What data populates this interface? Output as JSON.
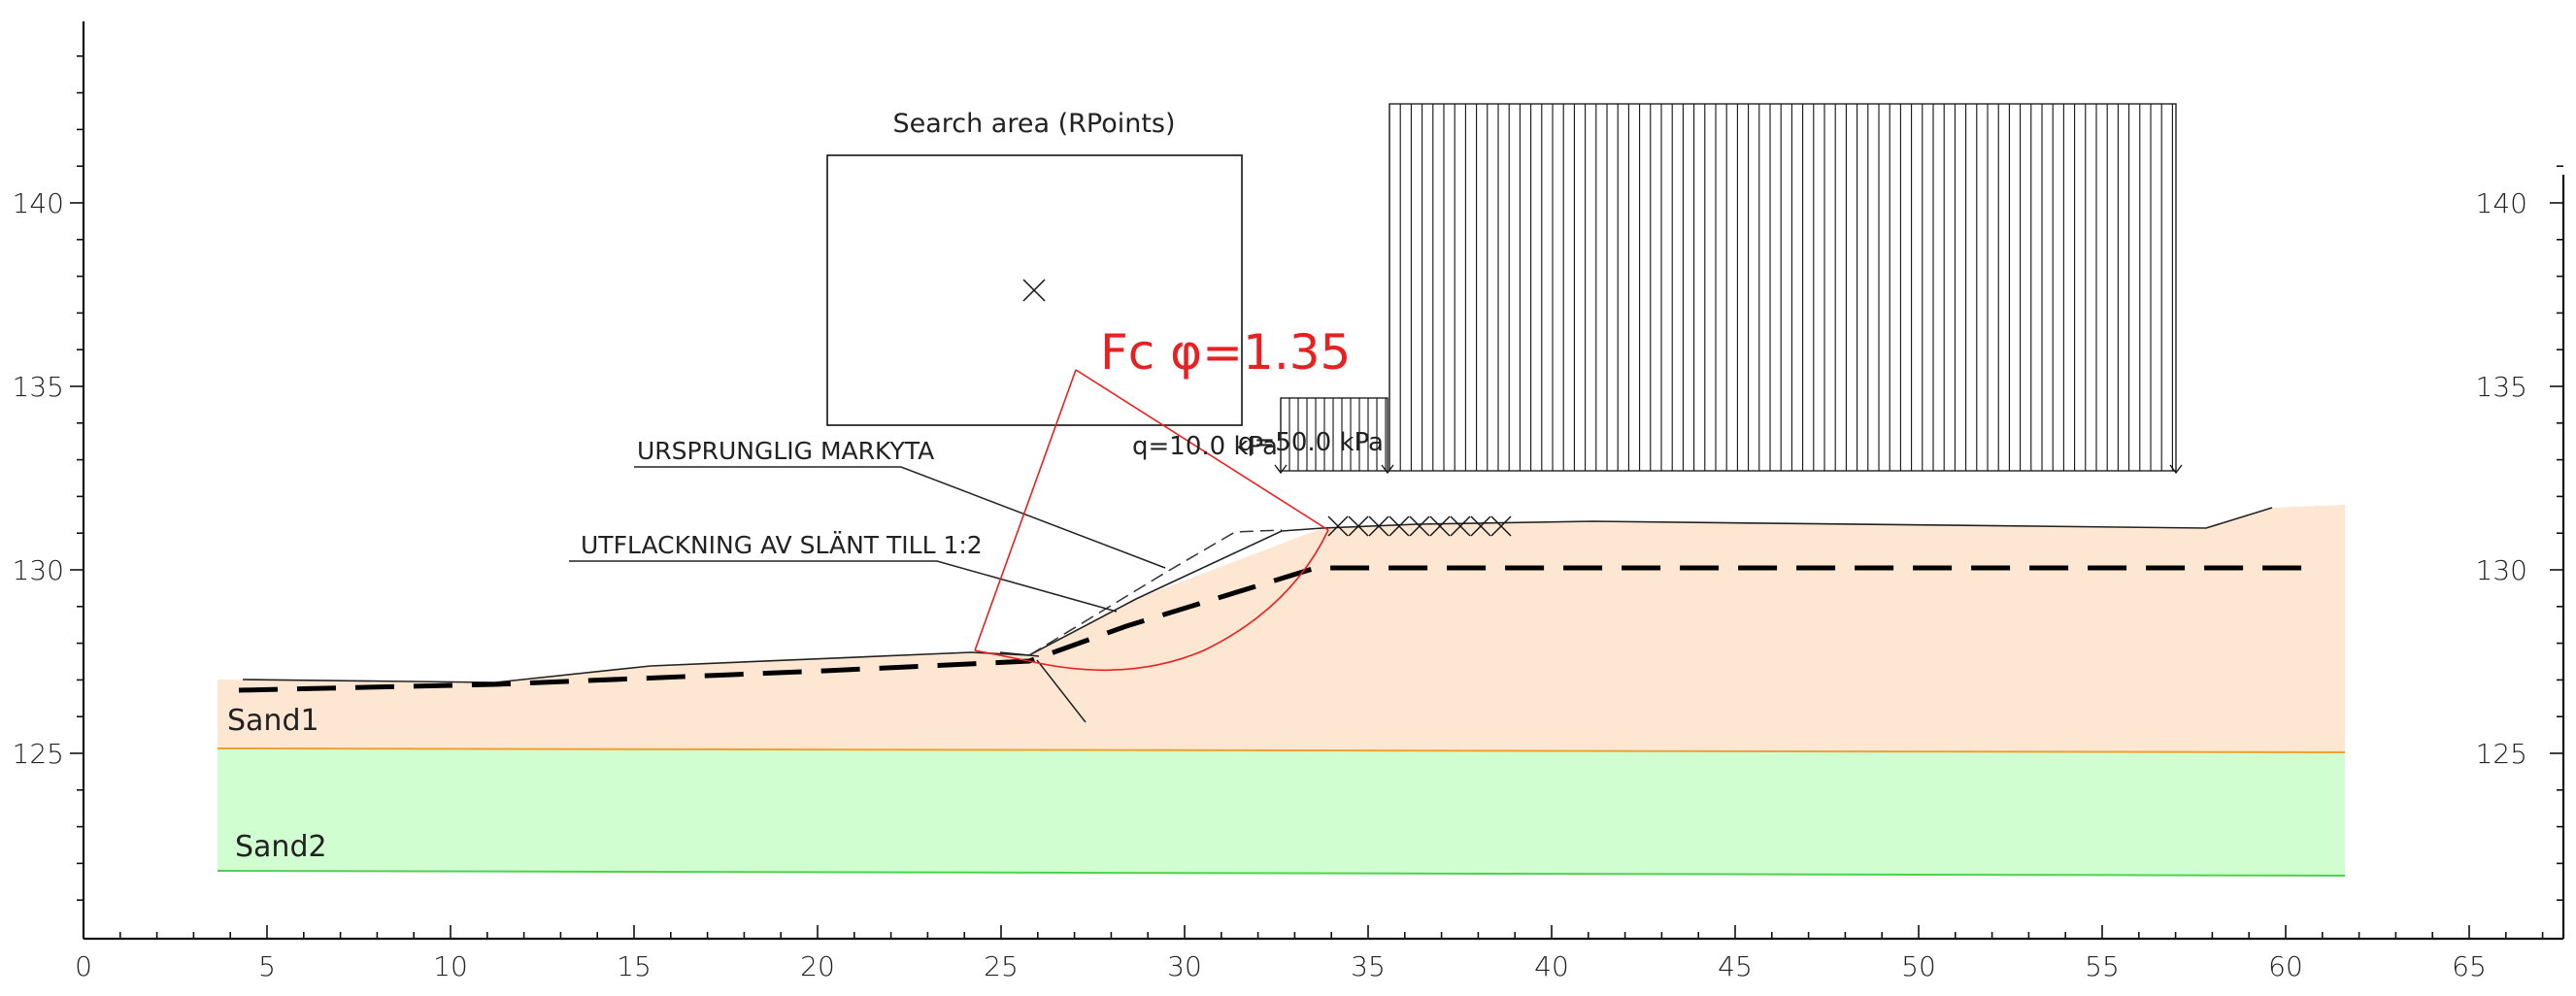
{
  "axes": {
    "x_ticks": [
      "0",
      "5",
      "10",
      "15",
      "20",
      "25",
      "30",
      "35",
      "40",
      "45",
      "50",
      "55",
      "60",
      "65"
    ],
    "y_ticks": [
      "125",
      "130",
      "135",
      "140"
    ]
  },
  "search_area": {
    "label": "Search area (RPoints)"
  },
  "result": {
    "label": "Fc φ=1.35",
    "color": "#e8201f"
  },
  "loads": [
    {
      "label": "q=10.0 kPa"
    },
    {
      "label": "q=50.0 kPa"
    }
  ],
  "annotations": {
    "original_ground": "URSPRUNGLIG MARKYTA",
    "slope_flattening": "UTFLACKNING AV SLÄNT TILL 1:2"
  },
  "layers": [
    {
      "name": "Sand1",
      "color": "#fde6d2"
    },
    {
      "name": "Sand2",
      "color": "#d0fed0"
    }
  ]
}
